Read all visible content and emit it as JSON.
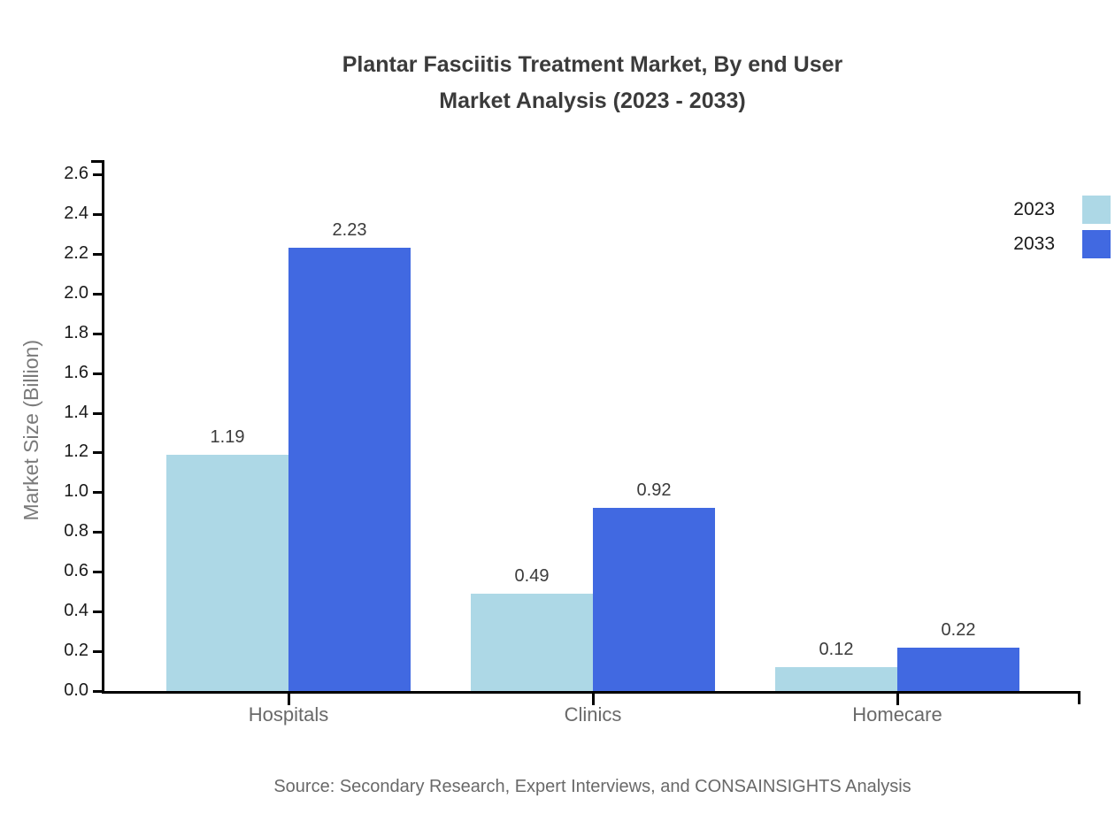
{
  "title": {
    "line1": "Plantar Fasciitis Treatment Market, By end User",
    "line2": "Market Analysis (2023 - 2033)"
  },
  "chart_data": {
    "type": "bar",
    "categories": [
      "Hospitals",
      "Clinics",
      "Homecare"
    ],
    "series": [
      {
        "name": "2023",
        "color": "#ADD8E6",
        "values": [
          1.19,
          0.49,
          0.12
        ]
      },
      {
        "name": "2033",
        "color": "#4169E1",
        "values": [
          2.23,
          0.92,
          0.22
        ]
      }
    ],
    "title": "Plantar Fasciitis Treatment Market, By end User Market Analysis (2023 - 2033)",
    "xlabel": "",
    "ylabel": "Market Size (Billion)",
    "ylim": [
      0,
      2.6
    ],
    "ytick_step": 0.2,
    "grid": false,
    "legend_position": "top-right",
    "value_label_decimals": 2
  },
  "source": "Source: Secondary Research, Expert Interviews, and CONSAINSIGHTS Analysis"
}
